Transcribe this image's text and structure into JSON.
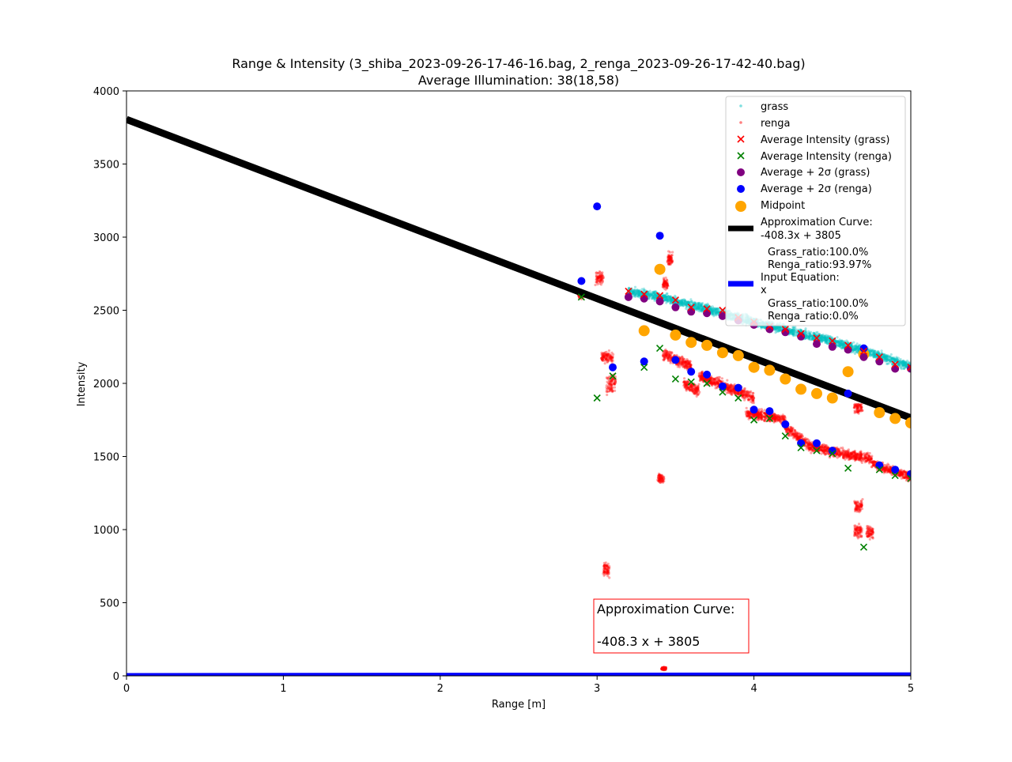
{
  "chart_data": {
    "type": "scatter",
    "title": "Range & Intensity (3_shiba_2023-09-26-17-46-16.bag, 2_renga_2023-09-26-17-42-40.bag)",
    "subtitle": "Average Illumination: 38(18,58)",
    "xlabel": "Range [m]",
    "ylabel": "Intensity",
    "xlim": [
      0,
      5
    ],
    "ylim": [
      0,
      4000
    ],
    "xticks": [
      "0",
      "1",
      "2",
      "3",
      "4",
      "5"
    ],
    "yticks": [
      "0",
      "500",
      "1000",
      "1500",
      "2000",
      "2500",
      "3000",
      "3500",
      "4000"
    ],
    "grid": false,
    "legend_position": "top-right",
    "colors": {
      "grass": "#00bfbf",
      "renga": "#ff0000",
      "avg_grass": "#ff0000",
      "avg_renga": "#008000",
      "sigma_grass": "#800080",
      "sigma_renga": "#0000ff",
      "midpoint": "#ffa500",
      "approx": "#000000",
      "input": "#0000ff"
    },
    "legend": [
      {
        "label": "grass",
        "marker": "dot"
      },
      {
        "label": "renga",
        "marker": "dot"
      },
      {
        "label": "Average Intensity (grass)",
        "marker": "x"
      },
      {
        "label": "Average Intensity (renga)",
        "marker": "x"
      },
      {
        "label": "Average + 2σ (grass)",
        "marker": "circle"
      },
      {
        "label": "Average + 2σ (renga)",
        "marker": "circle"
      },
      {
        "label": "Midpoint",
        "marker": "circle-large"
      },
      {
        "label": "Approximation Curve:",
        "line2": "-408.3x + 3805",
        "line3": "Grass_ratio:100.0%",
        "line4": "Renga_ratio:93.97%",
        "marker": "line"
      },
      {
        "label": "Input Equation:",
        "line2": "x",
        "line3": "Grass_ratio:100.0%",
        "line4": "Renga_ratio:0.0%",
        "marker": "line"
      }
    ],
    "annotation": {
      "line1": "Approximation Curve:",
      "line2": "-408.3 x + 3805",
      "x": 3.0,
      "y": 460
    },
    "approximation_curve": {
      "slope": -408.3,
      "intercept": 3805
    },
    "input_equation": {
      "slope": 1,
      "intercept": 0
    },
    "grass_clusters": [
      {
        "x0": 3.2,
        "x1": 3.45,
        "y0": 2630,
        "y1": 2580,
        "spread": 40
      },
      {
        "x0": 3.45,
        "x1": 4.0,
        "y0": 2580,
        "y1": 2420,
        "spread": 45
      },
      {
        "x0": 4.0,
        "x1": 4.5,
        "y0": 2420,
        "y1": 2290,
        "spread": 45
      },
      {
        "x0": 4.5,
        "x1": 5.0,
        "y0": 2290,
        "y1": 2120,
        "spread": 45
      }
    ],
    "renga_clusters": [
      {
        "x0": 2.88,
        "x1": 2.92,
        "y0": 2600,
        "y1": 2600,
        "spread": 30
      },
      {
        "x0": 2.99,
        "x1": 3.04,
        "y0": 2720,
        "y1": 2720,
        "spread": 60
      },
      {
        "x0": 3.03,
        "x1": 3.1,
        "y0": 2180,
        "y1": 2180,
        "spread": 60
      },
      {
        "x0": 3.06,
        "x1": 3.12,
        "y0": 1980,
        "y1": 2020,
        "spread": 90
      },
      {
        "x0": 3.04,
        "x1": 3.08,
        "y0": 730,
        "y1": 730,
        "spread": 80
      },
      {
        "x0": 3.42,
        "x1": 3.45,
        "y0": 2680,
        "y1": 2680,
        "spread": 50
      },
      {
        "x0": 3.45,
        "x1": 3.48,
        "y0": 2850,
        "y1": 2850,
        "spread": 60
      },
      {
        "x0": 3.39,
        "x1": 3.43,
        "y0": 1350,
        "y1": 1350,
        "spread": 50
      },
      {
        "x0": 3.41,
        "x1": 3.44,
        "y0": 50,
        "y1": 50,
        "spread": 15
      },
      {
        "x0": 3.42,
        "x1": 3.6,
        "y0": 2200,
        "y1": 2120,
        "spread": 50
      },
      {
        "x0": 3.55,
        "x1": 3.65,
        "y0": 2000,
        "y1": 1950,
        "spread": 60
      },
      {
        "x0": 3.65,
        "x1": 4.0,
        "y0": 2050,
        "y1": 1900,
        "spread": 50
      },
      {
        "x0": 3.95,
        "x1": 4.2,
        "y0": 1800,
        "y1": 1750,
        "spread": 50
      },
      {
        "x0": 4.2,
        "x1": 4.35,
        "y0": 1700,
        "y1": 1580,
        "spread": 50
      },
      {
        "x0": 4.35,
        "x1": 4.75,
        "y0": 1570,
        "y1": 1480,
        "spread": 50
      },
      {
        "x0": 4.75,
        "x1": 5.0,
        "y0": 1450,
        "y1": 1360,
        "spread": 40
      },
      {
        "x0": 4.64,
        "x1": 4.69,
        "y0": 1830,
        "y1": 1830,
        "spread": 50
      },
      {
        "x0": 4.64,
        "x1": 4.69,
        "y0": 1160,
        "y1": 1160,
        "spread": 60
      },
      {
        "x0": 4.64,
        "x1": 4.69,
        "y0": 990,
        "y1": 990,
        "spread": 60
      },
      {
        "x0": 4.72,
        "x1": 4.76,
        "y0": 980,
        "y1": 980,
        "spread": 60
      }
    ],
    "series": [
      {
        "name": "Average Intensity (grass)",
        "x": [
          3.2,
          3.3,
          3.4,
          3.5,
          3.6,
          3.7,
          3.8,
          3.9,
          4.0,
          4.1,
          4.2,
          4.3,
          4.4,
          4.5,
          4.6,
          4.7,
          4.8,
          4.9,
          5.0
        ],
        "y": [
          2630,
          2610,
          2600,
          2570,
          2520,
          2510,
          2500,
          2450,
          2420,
          2390,
          2370,
          2340,
          2310,
          2290,
          2260,
          2220,
          2180,
          2130,
          2110
        ]
      },
      {
        "name": "Average Intensity (renga)",
        "x": [
          2.9,
          3.0,
          3.1,
          3.3,
          3.4,
          3.5,
          3.6,
          3.7,
          3.8,
          3.9,
          4.0,
          4.1,
          4.2,
          4.3,
          4.4,
          4.5,
          4.6,
          4.7,
          4.8,
          4.9,
          5.0
        ],
        "y": [
          2590,
          1900,
          2050,
          2110,
          2240,
          2030,
          2010,
          2000,
          1940,
          1900,
          1750,
          1760,
          1640,
          1560,
          1540,
          1520,
          1420,
          880,
          1410,
          1370,
          1350
        ]
      },
      {
        "name": "Average + 2σ (grass)",
        "x": [
          3.2,
          3.3,
          3.4,
          3.5,
          3.6,
          3.7,
          3.8,
          3.9,
          4.0,
          4.1,
          4.2,
          4.3,
          4.4,
          4.5,
          4.6,
          4.7,
          4.8,
          4.9,
          5.0
        ],
        "y": [
          2590,
          2580,
          2560,
          2520,
          2490,
          2480,
          2460,
          2430,
          2400,
          2370,
          2350,
          2320,
          2270,
          2250,
          2230,
          2180,
          2150,
          2100,
          2100
        ]
      },
      {
        "name": "Average + 2σ (renga)",
        "x": [
          2.9,
          3.0,
          3.1,
          3.3,
          3.4,
          3.5,
          3.6,
          3.7,
          3.8,
          3.9,
          4.0,
          4.1,
          4.2,
          4.3,
          4.4,
          4.5,
          4.6,
          4.7,
          4.8,
          4.9,
          5.0
        ],
        "y": [
          2700,
          3210,
          2110,
          2150,
          3010,
          2160,
          2080,
          2060,
          1980,
          1970,
          1820,
          1810,
          1720,
          1590,
          1590,
          1540,
          1930,
          2240,
          1440,
          1410,
          1380
        ]
      },
      {
        "name": "Midpoint",
        "x": [
          3.4,
          3.3,
          3.5,
          3.6,
          3.7,
          3.8,
          3.9,
          4.0,
          4.1,
          4.2,
          4.3,
          4.4,
          4.5,
          4.6,
          4.7,
          4.8,
          4.9,
          5.0
        ],
        "y": [
          2780,
          2360,
          2330,
          2280,
          2260,
          2210,
          2190,
          2110,
          2090,
          2030,
          1960,
          1930,
          1900,
          2080,
          2200,
          1800,
          1760,
          1730
        ]
      }
    ]
  }
}
